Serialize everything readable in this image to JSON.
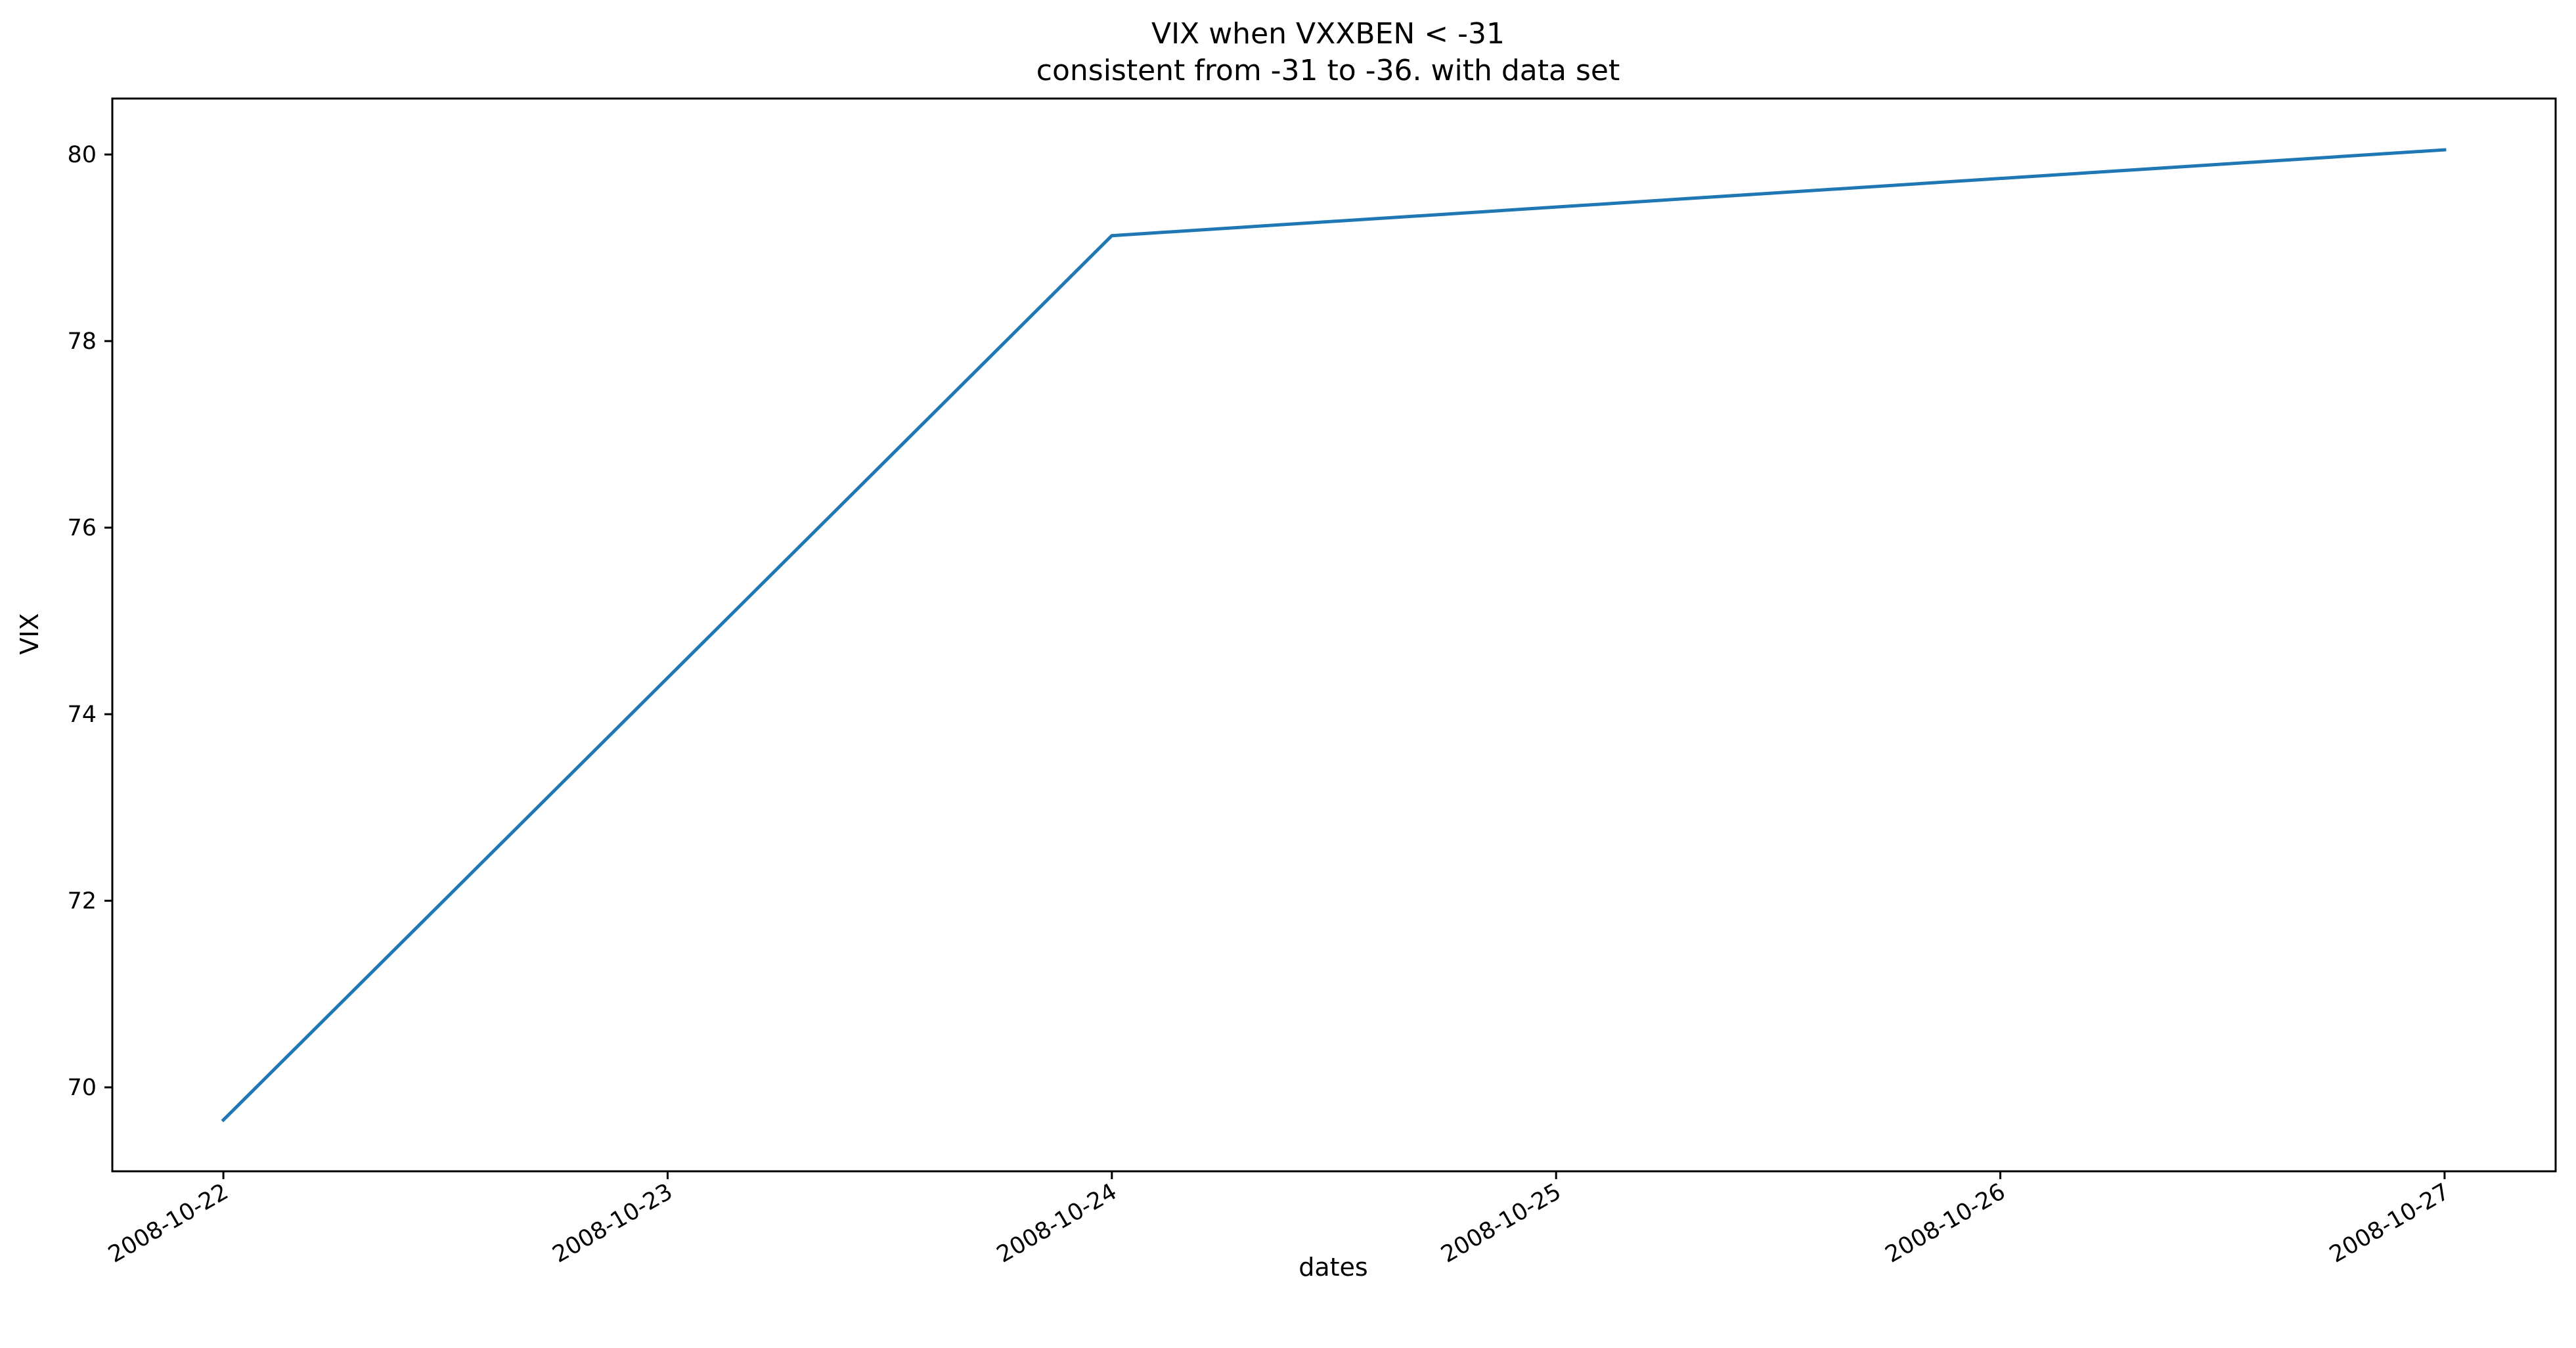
{
  "chart_data": {
    "type": "line",
    "title": "VIX when VXXBEN < -31",
    "subtitle": "consistent from -31 to -36. with data set",
    "xlabel": "dates",
    "ylabel": "VIX",
    "x": [
      "2008-10-22",
      "2008-10-24",
      "2008-10-27"
    ],
    "y": [
      69.65,
      79.13,
      80.05
    ],
    "x_ticks": [
      "2008-10-22",
      "2008-10-23",
      "2008-10-24",
      "2008-10-25",
      "2008-10-26",
      "2008-10-27"
    ],
    "y_ticks": [
      70,
      72,
      74,
      76,
      78,
      80
    ],
    "xlim": [
      "2008-10-21 18:00",
      "2008-10-27 06:00"
    ],
    "ylim": [
      69.1,
      80.6
    ],
    "grid": false,
    "line_color": "#1f77b4"
  }
}
